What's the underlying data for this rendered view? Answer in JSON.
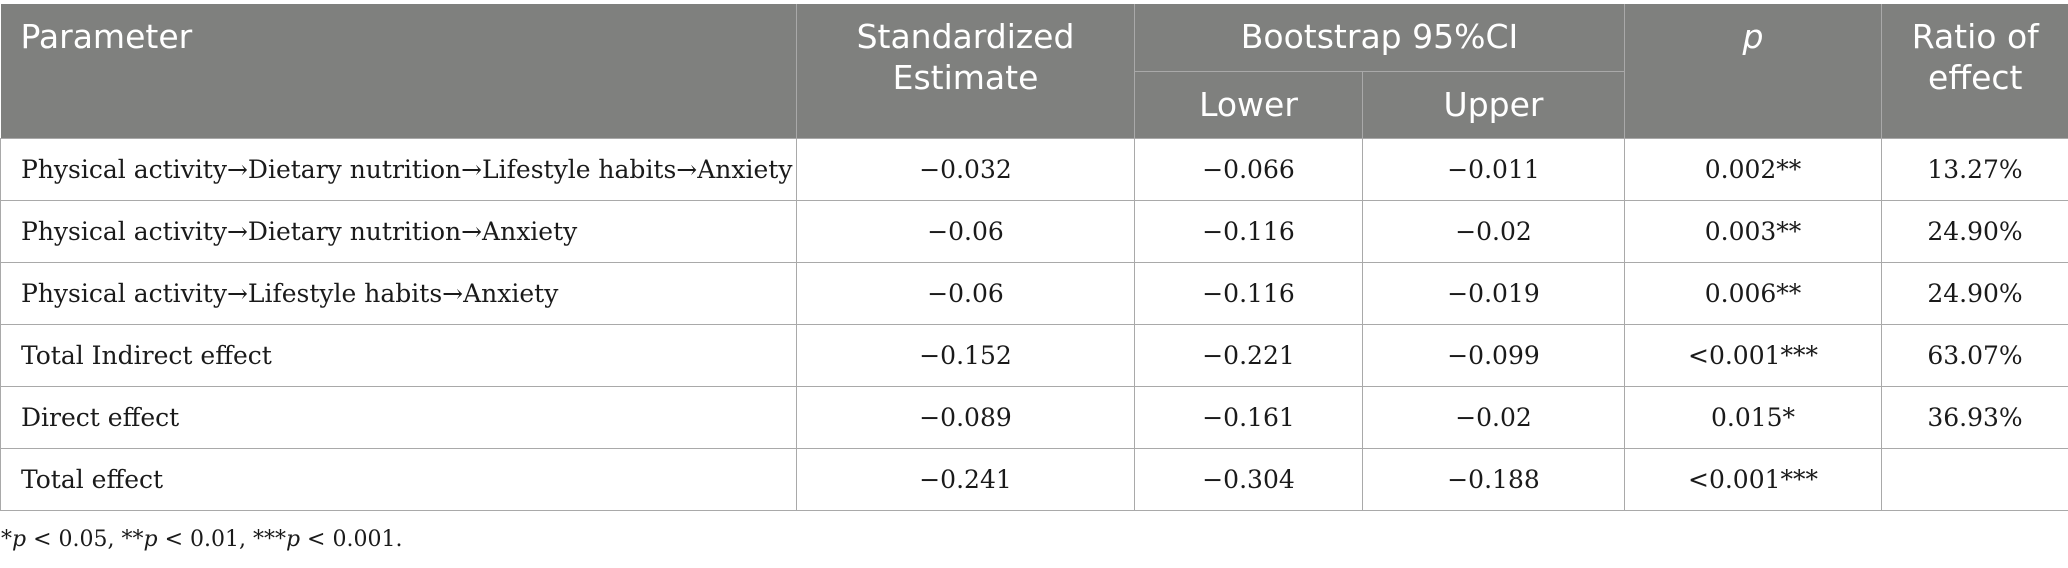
{
  "table": {
    "headers": {
      "parameter": "Parameter",
      "estimate": "Standardized Estimate",
      "bootstrap": "Bootstrap 95%CI",
      "lower": "Lower",
      "upper": "Upper",
      "p": "p",
      "ratio": "Ratio of effect"
    },
    "rows": [
      {
        "parameter": "Physical activity→Dietary nutrition→Lifestyle habits→Anxiety",
        "estimate": "−0.032",
        "lower": "−0.066",
        "upper": "−0.011",
        "p": "0.002**",
        "ratio": "13.27%"
      },
      {
        "parameter": "Physical activity→Dietary nutrition→Anxiety",
        "estimate": "−0.06",
        "lower": "−0.116",
        "upper": "−0.02",
        "p": "0.003**",
        "ratio": "24.90%"
      },
      {
        "parameter": "Physical activity→Lifestyle habits→Anxiety",
        "estimate": "−0.06",
        "lower": "−0.116",
        "upper": "−0.019",
        "p": "0.006**",
        "ratio": "24.90%"
      },
      {
        "parameter": "Total Indirect effect",
        "estimate": "−0.152",
        "lower": "−0.221",
        "upper": "−0.099",
        "p": "<0.001***",
        "ratio": "63.07%"
      },
      {
        "parameter": "Direct effect",
        "estimate": "−0.089",
        "lower": "−0.161",
        "upper": "−0.02",
        "p": "0.015*",
        "ratio": "36.93%"
      },
      {
        "parameter": "Total effect",
        "estimate": "−0.241",
        "lower": "−0.304",
        "upper": "−0.188",
        "p": "<0.001***",
        "ratio": ""
      }
    ]
  },
  "footnote": {
    "parts": [
      "*",
      "p",
      " < 0.05, **",
      "p",
      " < 0.01, ***",
      "p",
      " < 0.001."
    ]
  }
}
